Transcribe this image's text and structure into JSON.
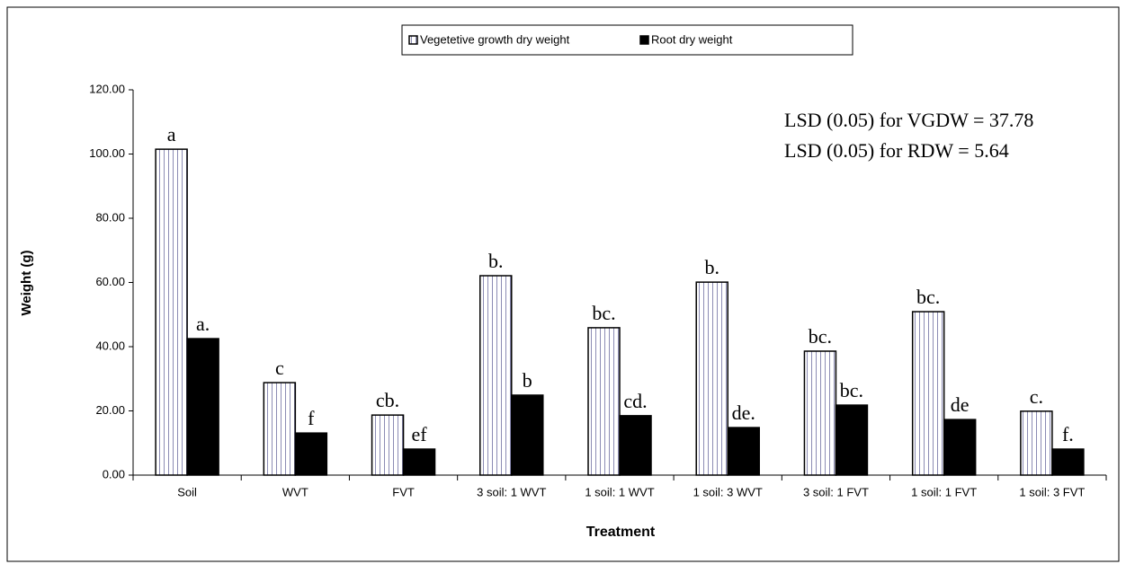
{
  "chart_data": {
    "type": "bar",
    "x_label": "Treatment",
    "y_label": "Weight (g)",
    "categories": [
      "Soil",
      "WVT",
      "FVT",
      "3 soil: 1 WVT",
      "1 soil: 1 WVT",
      "1 soil: 3 WVT",
      "3 soil: 1 FVT",
      "1 soil: 1 FVT",
      "1 soil: 3 FVT"
    ],
    "series": [
      {
        "name": "Vegetetive growth dry weight",
        "color": "#ffffff",
        "hatch": "#8c8cb4",
        "values": [
          101.5,
          28.8,
          18.7,
          62.1,
          45.9,
          60.1,
          38.6,
          50.9,
          19.9
        ],
        "letters": [
          "a",
          "c",
          "cb.",
          "b.",
          "bc.",
          "b.",
          "bc.",
          "bc.",
          "c."
        ]
      },
      {
        "name": "Root dry weight",
        "color": "#000000",
        "values": [
          42.5,
          13.1,
          8.1,
          24.9,
          18.5,
          14.8,
          21.8,
          17.3,
          8.1
        ],
        "letters": [
          "a.",
          "f",
          "ef",
          "b",
          "cd.",
          "de.",
          "bc.",
          "de",
          "f."
        ]
      }
    ],
    "annotations": [
      "LSD (0.05) for VGDW =  37.78",
      "LSD (0.05) for RDW = 5.64"
    ],
    "ylim": [
      0,
      120
    ],
    "yticks": [
      {
        "value": 0,
        "label": "0.00"
      },
      {
        "value": 20,
        "label": "20.00"
      },
      {
        "value": 40,
        "label": "40.00"
      },
      {
        "value": 60,
        "label": "60.00"
      },
      {
        "value": 80,
        "label": "80.00"
      },
      {
        "value": 100,
        "label": "100.00"
      },
      {
        "value": 120,
        "label": "120.00"
      }
    ],
    "grid": false,
    "legend": "top"
  }
}
